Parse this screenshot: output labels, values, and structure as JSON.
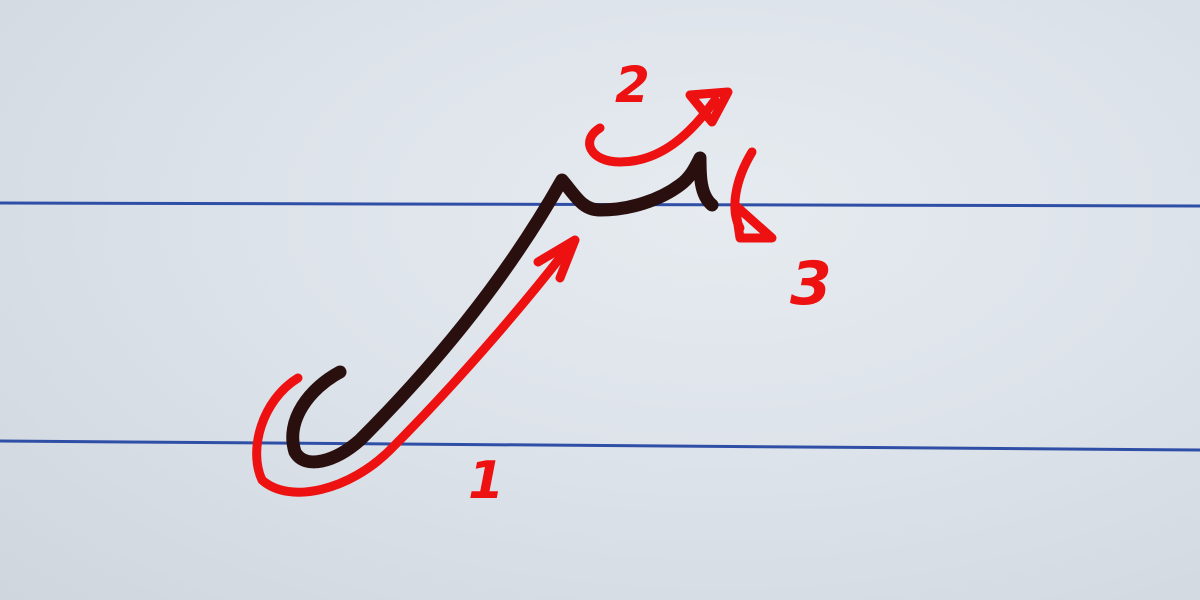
{
  "paper": {
    "background": "#dde3ea",
    "rule_color": "#2f4fa6"
  },
  "letter": {
    "ink_color": "#2a0f0f",
    "description_name": "handwritten-letter"
  },
  "guides": {
    "ink_color": "#ee1111",
    "stroke_numbers": [
      "1",
      "2",
      "3"
    ]
  }
}
